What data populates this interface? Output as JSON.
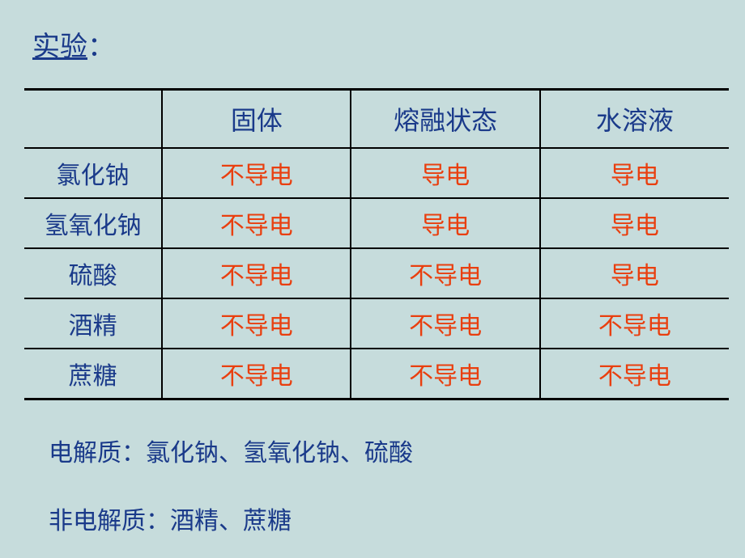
{
  "title": "实验",
  "title_colon": "：",
  "colors": {
    "background": "#c6dcdc",
    "header_text": "#1a3a8a",
    "substance_text": "#1a3a8a",
    "value_text": "#e93f0f",
    "summary_text": "#1a3a8a",
    "border": "#000000"
  },
  "table": {
    "columns": [
      "",
      "固体",
      "熔融状态",
      "水溶液"
    ],
    "rows": [
      {
        "substance": "氯化钠",
        "values": [
          "不导电",
          "导电",
          "导电"
        ]
      },
      {
        "substance": "氢氧化钠",
        "values": [
          "不导电",
          "导电",
          "导电"
        ]
      },
      {
        "substance": "硫酸",
        "values": [
          "不导电",
          "不导电",
          "导电"
        ]
      },
      {
        "substance": "酒精",
        "values": [
          "不导电",
          "不导电",
          "不导电"
        ]
      },
      {
        "substance": "蔗糖",
        "values": [
          "不导电",
          "不导电",
          "不导电"
        ]
      }
    ]
  },
  "summary": {
    "electrolyte": "电解质：氯化钠、氢氧化钠、硫酸",
    "non_electrolyte": "非电解质：酒精、蔗糖"
  }
}
